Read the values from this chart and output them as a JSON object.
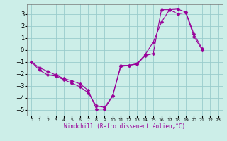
{
  "bg_color": "#cceee8",
  "line_color": "#990099",
  "grid_color": "#99cccc",
  "xlabel": "Windchill (Refroidissement éolien,°C)",
  "xlim": [
    -0.5,
    23.5
  ],
  "ylim": [
    -5.5,
    3.8
  ],
  "xticks": [
    0,
    1,
    2,
    3,
    4,
    5,
    6,
    7,
    8,
    9,
    10,
    11,
    12,
    13,
    14,
    15,
    16,
    17,
    18,
    19,
    20,
    21,
    22,
    23
  ],
  "yticks": [
    -5,
    -4,
    -3,
    -2,
    -1,
    0,
    1,
    2,
    3
  ],
  "line1_x": [
    0,
    1,
    2,
    3,
    4,
    5,
    6,
    7,
    8,
    9,
    10,
    11,
    12,
    13,
    14,
    15,
    16,
    17,
    18,
    19,
    20,
    21
  ],
  "line1_y": [
    -1,
    -1.7,
    -2.1,
    -2.2,
    -2.5,
    -2.8,
    -3.1,
    -3.6,
    -4.7,
    -4.8,
    -3.85,
    -1.4,
    -1.3,
    -1.2,
    -0.5,
    -0.3,
    3.35,
    3.35,
    3.0,
    3.1,
    1.1,
    0.0
  ],
  "line2_x": [
    0,
    1,
    2,
    3,
    4,
    5,
    6,
    7,
    8,
    9,
    10,
    11,
    12,
    13,
    14,
    15,
    16,
    17,
    18,
    19,
    20,
    21
  ],
  "line2_y": [
    -1,
    -1.5,
    -1.8,
    -2.1,
    -2.4,
    -2.6,
    -2.85,
    -3.4,
    -4.95,
    -4.95,
    -3.85,
    -1.3,
    -1.3,
    -1.15,
    -0.4,
    0.65,
    2.3,
    3.35,
    3.4,
    3.15,
    1.3,
    0.1
  ],
  "marker": "D",
  "markersize": 2.5,
  "linewidth": 0.8
}
